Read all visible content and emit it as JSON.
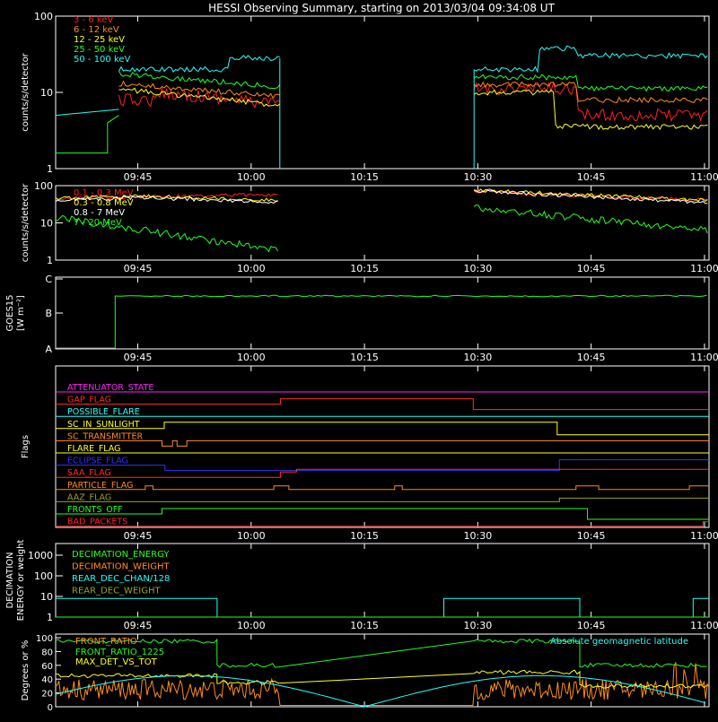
{
  "title": "HESSI Observing Summary, starting on 2013/03/04 09:34:08 UT",
  "time_ticks": [
    "09:45",
    "10:00",
    "10:15",
    "10:30",
    "10:45",
    "11:00"
  ],
  "chart_data": [
    {
      "id": "lightcurves-low",
      "type": "line",
      "ylabel": "counts/s/detector",
      "yscale": "log",
      "ylim": [
        1,
        100
      ],
      "ytick_labels": [
        "1",
        "10",
        "100"
      ],
      "legend_placement": "top-left",
      "series": [
        {
          "name": "3 - 6 keV",
          "color": "#ff2020"
        },
        {
          "name": "6 - 12 keV",
          "color": "#ff8c1a"
        },
        {
          "name": "12 - 25 keV",
          "color": "#ffff20"
        },
        {
          "name": "25 - 50 keV",
          "color": "#20ff20"
        },
        {
          "name": "50 - 100 keV",
          "color": "#20ffff"
        }
      ]
    },
    {
      "id": "lightcurves-high",
      "type": "line",
      "ylabel": "counts/s/detector",
      "yscale": "log",
      "ylim": [
        1,
        100
      ],
      "ytick_labels": [
        "1",
        "10",
        "100"
      ],
      "legend_placement": "top-left",
      "series": [
        {
          "name": "0.1 - 0.3 MeV",
          "color": "#ff2020"
        },
        {
          "name": "0.3 - 0.8 MeV",
          "color": "#ffff20"
        },
        {
          "name": "0.8 - 7 MeV",
          "color": "#ffffff"
        },
        {
          "name": "7 - 20 MeV",
          "color": "#20ff20"
        }
      ]
    },
    {
      "id": "goes",
      "type": "line",
      "ylabel": "GOES15",
      "ylabel2": "[W m⁻²]",
      "ytick_labels": [
        "A",
        "B",
        "C"
      ],
      "series": [
        {
          "name": "",
          "color": "#20ff20"
        }
      ]
    },
    {
      "id": "flags",
      "type": "line",
      "ylabel": "Flags",
      "series": [
        {
          "name": "ATTENUATOR_STATE",
          "color": "#ff20ff"
        },
        {
          "name": "GAP_FLAG",
          "color": "#ff3020"
        },
        {
          "name": "POSSIBLE_FLARE",
          "color": "#20ffff"
        },
        {
          "name": "SC_IN_SUNLIGHT",
          "color": "#ffff20"
        },
        {
          "name": "SC_TRANSMITTER",
          "color": "#ff8c1a"
        },
        {
          "name": "FLARE_FLAG",
          "color": "#ffff20"
        },
        {
          "name": "ECLIPSE_FLAG",
          "color": "#3030ff"
        },
        {
          "name": "SAA_FLAG",
          "color": "#ff3020"
        },
        {
          "name": "PARTICLE_FLAG",
          "color": "#ff8c1a"
        },
        {
          "name": "AAZ_FLAG",
          "color": "#9aa020"
        },
        {
          "name": "FRONTS_OFF",
          "color": "#20ff20"
        },
        {
          "name": "BAD_PACKETS",
          "color": "#ff2020"
        }
      ]
    },
    {
      "id": "decimation",
      "type": "line",
      "ylabel": "DECIMATION",
      "ylabel2": "ENERGY or weight",
      "yscale": "log",
      "ytick_labels": [
        "1",
        "10",
        "100",
        "1000"
      ],
      "series": [
        {
          "name": "DECIMATION_ENERGY",
          "color": "#20ff20"
        },
        {
          "name": "DECIMATION_WEIGHT",
          "color": "#ff8c1a"
        },
        {
          "name": "REAR_DEC_CHAN/128",
          "color": "#20ffff"
        },
        {
          "name": "REAR_DEC_WEIGHT",
          "color": "#9aa020"
        }
      ]
    },
    {
      "id": "ratios",
      "type": "line",
      "ylabel": "Degrees or %",
      "ylim": [
        0,
        100
      ],
      "ytick_labels": [
        "0",
        "20",
        "40",
        "60",
        "80",
        "100"
      ],
      "series": [
        {
          "name": "FRONT_RATIO",
          "color": "#ff8c1a"
        },
        {
          "name": "FRONT_RATIO_1225",
          "color": "#20ff20"
        },
        {
          "name": "MAX_DET_VS_TOT",
          "color": "#ffff20"
        },
        {
          "name": "Absolute geomagnetic latitude",
          "color": "#20ffff"
        }
      ]
    }
  ]
}
